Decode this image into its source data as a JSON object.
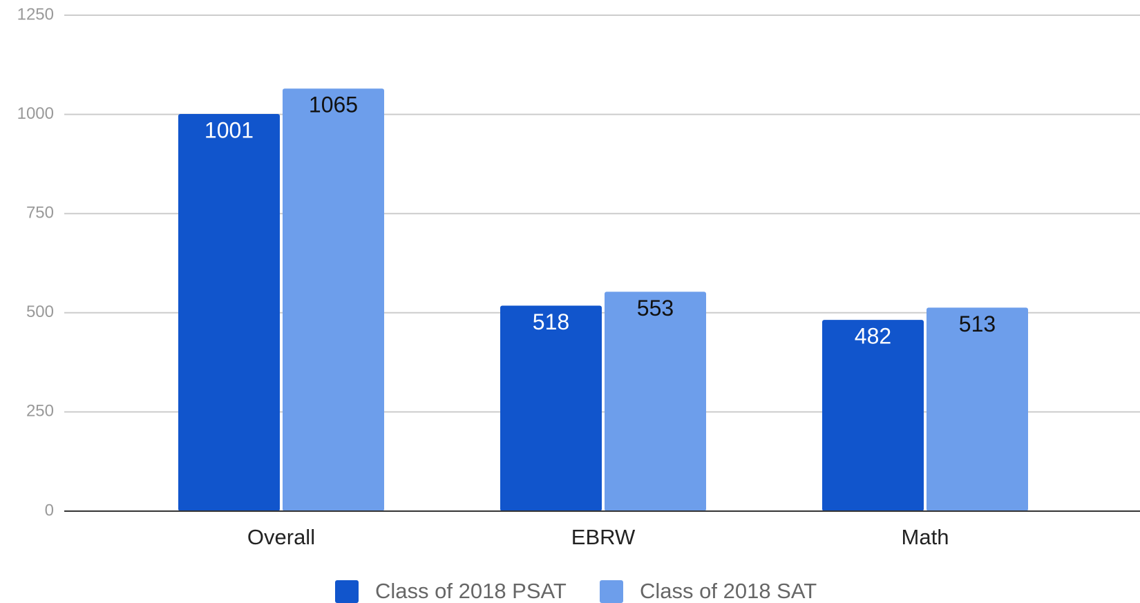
{
  "chart_data": {
    "type": "bar",
    "categories": [
      "Overall",
      "EBRW",
      "Math"
    ],
    "series": [
      {
        "name": "Class of 2018 PSAT",
        "color": "#1155cc",
        "values": [
          1001,
          518,
          482
        ]
      },
      {
        "name": "Class of 2018 SAT",
        "color": "#6d9eeb",
        "values": [
          1065,
          553,
          513
        ]
      }
    ],
    "ylim": [
      0,
      1250
    ],
    "yticks": [
      0,
      250,
      500,
      750,
      1000,
      1250
    ],
    "grid": true,
    "legend": "bottom"
  }
}
